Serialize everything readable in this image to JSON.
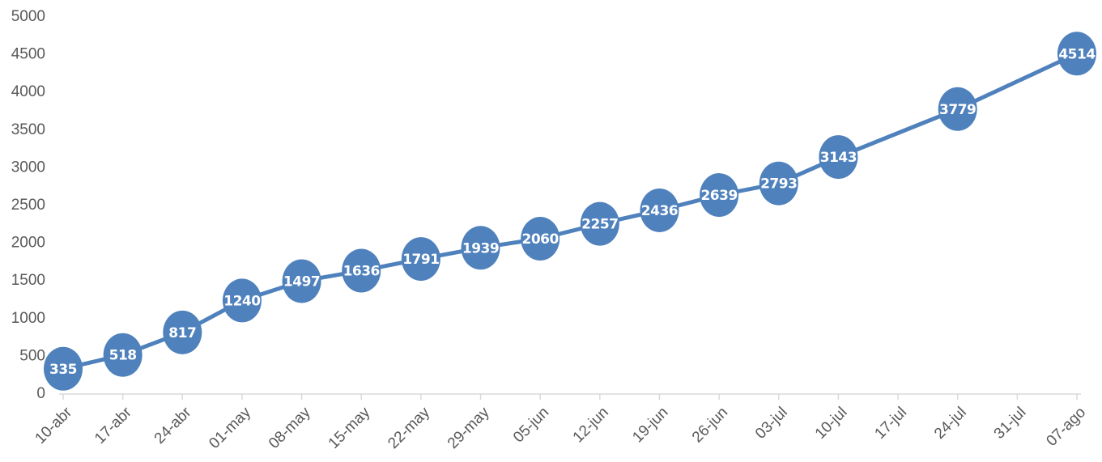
{
  "chart_data": {
    "type": "line",
    "categories": [
      "10-abr",
      "17-abr",
      "24-abr",
      "01-may",
      "08-may",
      "15-may",
      "22-may",
      "29-may",
      "05-jun",
      "12-jun",
      "19-jun",
      "26-jun",
      "03-jul",
      "10-jul",
      "17-jul",
      "24-jul",
      "31-jul",
      "07-ago"
    ],
    "values": [
      335,
      518,
      817,
      1240,
      1497,
      1636,
      1791,
      1939,
      2060,
      2257,
      2436,
      2639,
      2793,
      3143,
      null,
      3779,
      null,
      4514
    ],
    "color": "#4f81bd",
    "connect_gaps": true,
    "ylim": [
      0,
      5000
    ],
    "yticks": [
      0,
      500,
      1000,
      1500,
      2000,
      2500,
      3000,
      3500,
      4000,
      4500,
      5000
    ],
    "grid": false
  }
}
